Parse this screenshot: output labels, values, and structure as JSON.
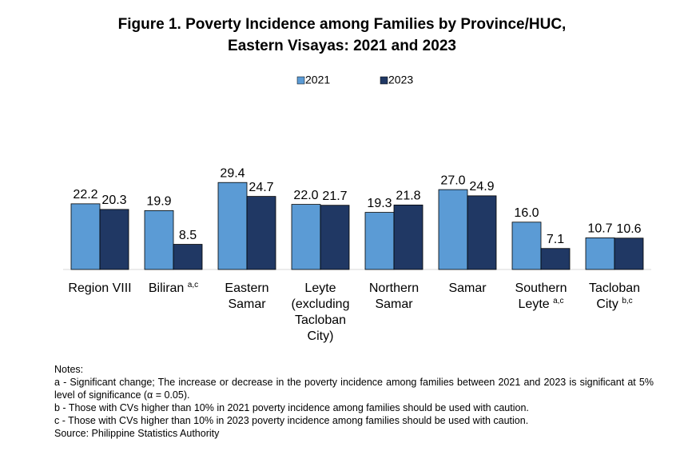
{
  "chart_data": {
    "type": "bar",
    "title": [
      "Figure 1. Poverty Incidence among Families by Province/HUC,",
      "Eastern Visayas: 2021 and 2023"
    ],
    "categories": [
      "Region VIII",
      "Biliran",
      "Eastern Samar",
      "Leyte (excluding Tacloban City)",
      "Northern Samar",
      "Samar",
      "Southern Leyte",
      "Tacloban City"
    ],
    "category_notes": [
      null,
      "a,c",
      null,
      null,
      null,
      null,
      "a,c",
      "b,c"
    ],
    "series": [
      {
        "name": "2021",
        "color": "#5b9bd5",
        "values": [
          22.2,
          19.9,
          29.4,
          22.0,
          19.3,
          27.0,
          16.0,
          10.7
        ],
        "value_labels": [
          "22.2",
          "19.9",
          "29.4",
          "22.0",
          "19.3",
          "27.0",
          "16.0",
          "10.7"
        ]
      },
      {
        "name": "2023",
        "color": "#203864",
        "values": [
          20.3,
          8.5,
          24.7,
          21.7,
          21.8,
          24.9,
          7.1,
          10.6
        ],
        "value_labels": [
          "20.3",
          "8.5",
          "24.7",
          "21.7",
          "21.8",
          "24.9",
          "7.1",
          "10.6"
        ]
      }
    ],
    "ylim": [
      0,
      30
    ],
    "grid": false,
    "legend": "top"
  },
  "notes": {
    "heading": "Notes:",
    "items": [
      "a - Significant change; The increase or decrease in the poverty incidence among families between 2021 and 2023 is significant at 5% level of significance (α = 0.05).",
      "b - Those with CVs higher than 10% in 2021 poverty incidence among families should be used with caution.",
      "c - Those with CVs higher than 10% in 2023 poverty incidence among families should be used with caution."
    ],
    "source": "Source: Philippine Statistics Authority"
  }
}
